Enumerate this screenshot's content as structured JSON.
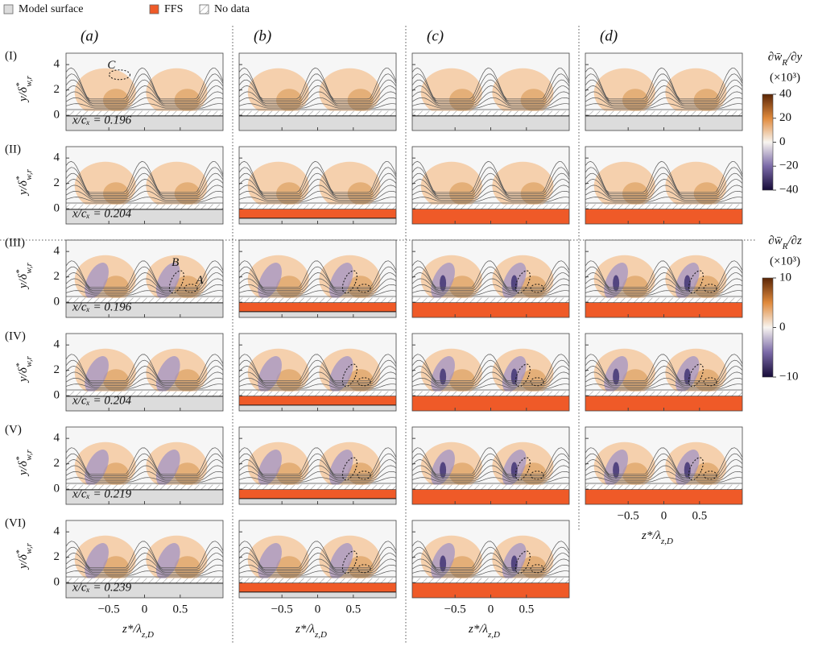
{
  "legend": [
    {
      "label": "Model surface",
      "color": "#dcdcdc"
    },
    {
      "label": "FFS",
      "color": "#ef5a28"
    },
    {
      "label": "No data",
      "pattern": "hatch"
    }
  ],
  "columns": [
    "(a)",
    "(b)",
    "(c)",
    "(d)"
  ],
  "rows": [
    "(I)",
    "(II)",
    "(III)",
    "(IV)",
    "(V)",
    "(VI)"
  ],
  "positions": [
    "x/cₓ = 0.196",
    "x/cₓ = 0.204",
    "x/cₓ = 0.196",
    "x/cₓ = 0.204",
    "x/cₓ = 0.219",
    "x/cₓ = 0.239"
  ],
  "annotations": [
    "C",
    "B",
    "A"
  ],
  "y_label": {
    "text": "y/δ",
    "sup": "*",
    "sub": "w,r"
  },
  "x_label": {
    "text": "z*/λ",
    "sub": "z,D"
  },
  "xlim": [
    -1.1,
    1.1
  ],
  "xticks": [
    -0.5,
    0,
    0.5
  ],
  "ylim": [
    -1.2,
    4.9
  ],
  "yticks": [
    0,
    2,
    4
  ],
  "colorbars": [
    {
      "title": {
        "text": "∂w̄",
        "sub": "R",
        "end": "/∂y"
      },
      "multiplier": "(×10³)",
      "lim": [
        -40,
        40
      ],
      "ticks": [
        40,
        20,
        0,
        -20,
        -40
      ]
    },
    {
      "title": {
        "text": "∂w̄",
        "sub": "R",
        "end": "/∂z"
      },
      "multiplier": "(×10³)",
      "lim": [
        -10,
        10
      ],
      "ticks": [
        10,
        0,
        -10
      ]
    }
  ]
}
